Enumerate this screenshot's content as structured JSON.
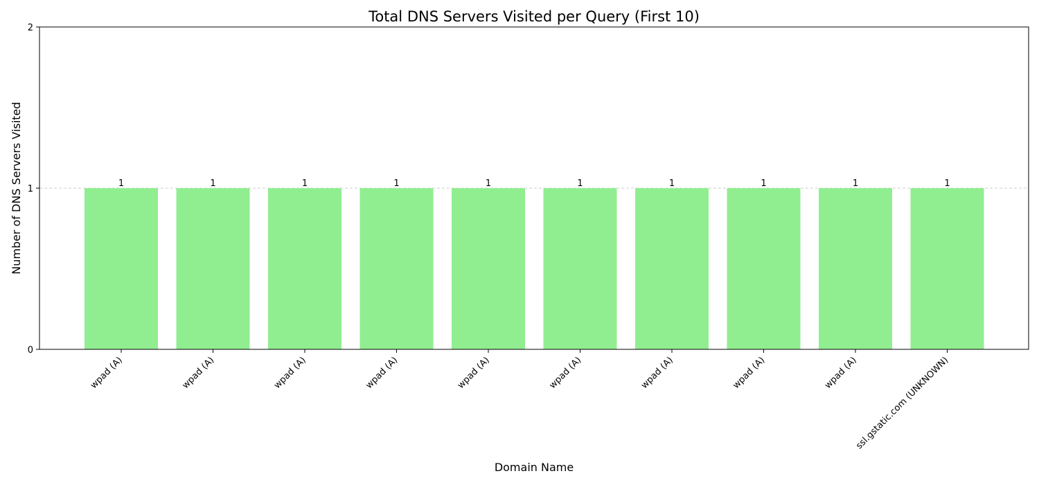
{
  "chart_data": {
    "type": "bar",
    "title": "Total DNS Servers Visited per Query (First 10)",
    "xlabel": "Domain Name",
    "ylabel": "Number of DNS Servers Visited",
    "categories": [
      "wpad (A)",
      "wpad (A)",
      "wpad (A)",
      "wpad (A)",
      "wpad (A)",
      "wpad (A)",
      "wpad (A)",
      "wpad (A)",
      "wpad (A)",
      "ssl.gstatic.com (UNKNOWN)"
    ],
    "values": [
      1,
      1,
      1,
      1,
      1,
      1,
      1,
      1,
      1,
      1
    ],
    "data_labels": [
      "1",
      "1",
      "1",
      "1",
      "1",
      "1",
      "1",
      "1",
      "1",
      "1"
    ],
    "ylim": [
      0,
      2
    ],
    "yticks": [
      0,
      1,
      2
    ],
    "ytick_labels": [
      "0",
      "1",
      "2"
    ],
    "grid": "y-axis dashed",
    "legend": "none",
    "bar_color": "#90ee90",
    "grid_color": "#cccccc"
  }
}
